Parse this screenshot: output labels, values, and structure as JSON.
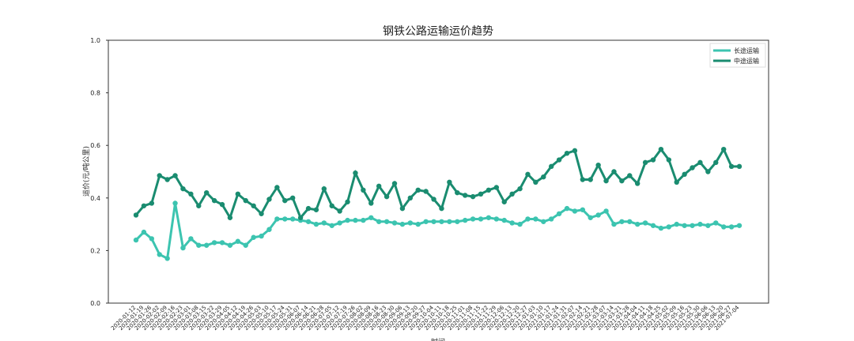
{
  "chart_data": {
    "type": "line",
    "title": "钢铁公路运输运价趋势",
    "xlabel": "时间",
    "ylabel": "运价(元/吨公里)",
    "categories": [
      "2020-01-12",
      "2020-01-19",
      "2020-01-26",
      "2020-02-02",
      "2020-02-09",
      "2020-02-16",
      "2020-02-23",
      "2020-03-01",
      "2020-03-08",
      "2020-03-15",
      "2020-03-22",
      "2020-03-29",
      "2020-04-05",
      "2020-04-12",
      "2020-04-19",
      "2020-04-26",
      "2020-05-03",
      "2020-05-10",
      "2020-05-17",
      "2020-05-24",
      "2020-05-31",
      "2020-06-07",
      "2020-06-14",
      "2020-06-21",
      "2020-06-28",
      "2020-07-05",
      "2020-07-12",
      "2020-07-19",
      "2020-07-26",
      "2020-08-02",
      "2020-08-09",
      "2020-08-16",
      "2020-08-23",
      "2020-08-30",
      "2020-09-06",
      "2020-09-13",
      "2020-09-20",
      "2020-09-27",
      "2020-10-04",
      "2020-10-11",
      "2020-10-18",
      "2020-10-25",
      "2020-11-01",
      "2020-11-08",
      "2020-11-15",
      "2020-11-22",
      "2020-11-29",
      "2020-12-06",
      "2020-12-13",
      "2020-12-20",
      "2020-12-27",
      "2021-01-03",
      "2021-01-10",
      "2021-01-17",
      "2021-01-24",
      "2021-01-31",
      "2021-02-07",
      "2021-02-14",
      "2021-02-21",
      "2021-02-28",
      "2021-03-07",
      "2021-03-14",
      "2021-03-21",
      "2021-03-28",
      "2021-04-04",
      "2021-04-11",
      "2021-04-18",
      "2021-04-25",
      "2021-05-02",
      "2021-05-09",
      "2021-05-16",
      "2021-05-23",
      "2021-05-30",
      "2021-06-06",
      "2021-06-13",
      "2021-06-20",
      "2021-06-27",
      "2021-07-04"
    ],
    "series": [
      {
        "name": "长途运输",
        "color": "#3cc4b0",
        "values": [
          0.24,
          0.27,
          0.245,
          0.185,
          0.17,
          0.38,
          0.21,
          0.245,
          0.22,
          0.22,
          0.23,
          0.23,
          0.22,
          0.235,
          0.22,
          0.25,
          0.255,
          0.28,
          0.32,
          0.32,
          0.32,
          0.315,
          0.31,
          0.3,
          0.305,
          0.295,
          0.305,
          0.315,
          0.315,
          0.315,
          0.325,
          0.31,
          0.31,
          0.305,
          0.3,
          0.305,
          0.3,
          0.31,
          0.31,
          0.31,
          0.31,
          0.31,
          0.315,
          0.32,
          0.32,
          0.325,
          0.32,
          0.315,
          0.305,
          0.3,
          0.32,
          0.32,
          0.31,
          0.32,
          0.34,
          0.36,
          0.35,
          0.355,
          0.325,
          0.335,
          0.35,
          0.3,
          0.31,
          0.31,
          0.3,
          0.305,
          0.295,
          0.285,
          0.29,
          0.3,
          0.295,
          0.295,
          0.3,
          0.295,
          0.305,
          0.29,
          0.29,
          0.295
        ]
      },
      {
        "name": "中途运输",
        "color": "#1a8c70",
        "values": [
          0.335,
          0.37,
          0.38,
          0.485,
          0.47,
          0.485,
          0.435,
          0.415,
          0.37,
          0.42,
          0.39,
          0.375,
          0.325,
          0.415,
          0.39,
          0.37,
          0.34,
          0.395,
          0.44,
          0.39,
          0.4,
          0.325,
          0.36,
          0.355,
          0.435,
          0.37,
          0.35,
          0.385,
          0.495,
          0.43,
          0.38,
          0.445,
          0.405,
          0.455,
          0.36,
          0.4,
          0.43,
          0.425,
          0.395,
          0.36,
          0.46,
          0.42,
          0.41,
          0.405,
          0.415,
          0.43,
          0.44,
          0.385,
          0.415,
          0.435,
          0.49,
          0.46,
          0.48,
          0.52,
          0.545,
          0.57,
          0.58,
          0.47,
          0.47,
          0.525,
          0.465,
          0.5,
          0.465,
          0.485,
          0.455,
          0.535,
          0.545,
          0.585,
          0.545,
          0.46,
          0.49,
          0.515,
          0.535,
          0.5,
          0.535,
          0.585,
          0.52,
          0.52
        ]
      }
    ],
    "ylim": [
      0,
      1
    ],
    "yticks": [
      {
        "value": 0,
        "label": "0.0"
      },
      {
        "value": 0.2,
        "label": "0.2"
      },
      {
        "value": 0.4,
        "label": "0.4"
      },
      {
        "value": 0.6,
        "label": "0.6"
      },
      {
        "value": 0.8,
        "label": "0.8"
      },
      {
        "value": 1,
        "label": "1.0"
      }
    ],
    "legend": "upper right"
  }
}
